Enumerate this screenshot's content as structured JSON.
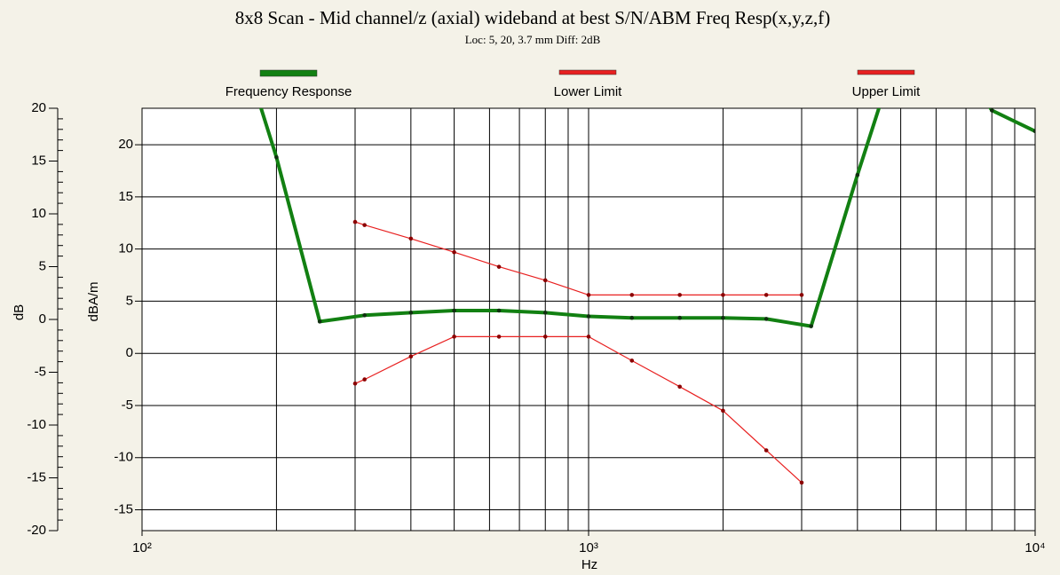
{
  "chart_data": {
    "type": "line",
    "title": "8x8 Scan - Mid channel/z (axial) wideband at best S/N/ABM Freq Resp(x,y,z,f)",
    "subtitle": "Loc: 5, 20, 3.7 mm Diff: 2dB",
    "xlabel": "Hz",
    "ylabel": "dB",
    "y2label": "dBA/m",
    "xscale": "log",
    "xlim": [
      100,
      10000
    ],
    "xticks": [
      {
        "value": 100,
        "label": "10²"
      },
      {
        "value": 1000,
        "label": "10³"
      },
      {
        "value": 10000,
        "label": "10⁴"
      }
    ],
    "xgrid": [
      200,
      300,
      400,
      500,
      600,
      700,
      800,
      900,
      2000,
      3000,
      4000,
      5000,
      6000,
      7000,
      8000,
      9000
    ],
    "ylim": [
      -20,
      20
    ],
    "yticks": [
      -20,
      -15,
      -10,
      -5,
      0,
      5,
      10,
      15,
      20
    ],
    "y2lim": [
      -17,
      23.5
    ],
    "y2ticks": [
      -15,
      -10,
      -5,
      0,
      5,
      10,
      15,
      20
    ],
    "grid": true,
    "legend": "top",
    "series": [
      {
        "name": "Frequency Response",
        "color": "#128012",
        "axis": "y2",
        "x": [
          160,
          200,
          250,
          315,
          400,
          500,
          630,
          800,
          1000,
          1250,
          1600,
          2000,
          2500,
          3150,
          4000,
          5000,
          6300,
          8000,
          10000
        ],
        "values": [
          32,
          18.8,
          3.05,
          3.65,
          3.9,
          4.1,
          4.1,
          3.9,
          3.55,
          3.4,
          3.4,
          3.4,
          3.3,
          2.6,
          17.1,
          30,
          30,
          23.3,
          21.3
        ]
      },
      {
        "name": "Lower Limit",
        "color": "#e82020",
        "axis": "y2",
        "x": [
          300,
          315,
          400,
          500,
          630,
          800,
          1000,
          1250,
          1600,
          2000,
          2500,
          3000
        ],
        "values": [
          -2.9,
          -2.5,
          -0.3,
          1.6,
          1.6,
          1.6,
          1.6,
          -0.7,
          -3.2,
          -5.5,
          -9.3,
          -12.4
        ]
      },
      {
        "name": "Upper Limit",
        "color": "#e82020",
        "axis": "y2",
        "x": [
          300,
          315,
          400,
          500,
          630,
          800,
          1000,
          1250,
          1600,
          2000,
          2500,
          3000
        ],
        "values": [
          12.6,
          12.3,
          11,
          9.7,
          8.3,
          7.0,
          5.6,
          5.6,
          5.6,
          5.6,
          5.6,
          5.6
        ]
      }
    ]
  }
}
